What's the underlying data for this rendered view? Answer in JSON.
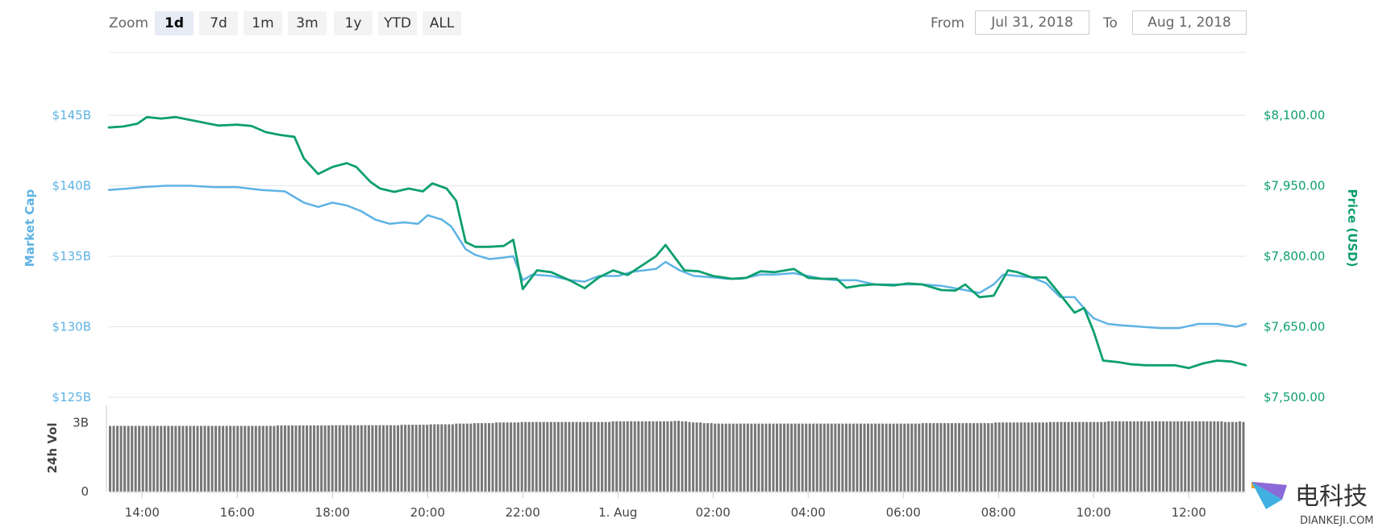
{
  "toolbar": {
    "zoom_label": "Zoom",
    "zoom_options": [
      "1d",
      "7d",
      "1m",
      "3m",
      "1y",
      "YTD",
      "ALL"
    ],
    "zoom_active": "1d",
    "from_label": "From",
    "from_value": "Jul 31, 2018",
    "to_label": "To",
    "to_value": "Aug 1, 2018"
  },
  "watermark": {
    "chinese": "电科技",
    "latin": "DIANKEJI.COM"
  },
  "chart_data": {
    "type": "line",
    "xlabel": "",
    "x_range": [
      13.3,
      37.2
    ],
    "x_ticks": [
      {
        "at": 14,
        "label": "14:00"
      },
      {
        "at": 16,
        "label": "16:00"
      },
      {
        "at": 18,
        "label": "18:00"
      },
      {
        "at": 20,
        "label": "20:00"
      },
      {
        "at": 22,
        "label": "22:00"
      },
      {
        "at": 24,
        "label": "1. Aug"
      },
      {
        "at": 26,
        "label": "02:00"
      },
      {
        "at": 28,
        "label": "04:00"
      },
      {
        "at": 30,
        "label": "06:00"
      },
      {
        "at": 32,
        "label": "08:00"
      },
      {
        "at": 34,
        "label": "10:00"
      },
      {
        "at": 36,
        "label": "12:00"
      }
    ],
    "y_left": {
      "label": "Market Cap",
      "range": [
        125,
        145
      ],
      "ticks": [
        {
          "v": 145,
          "label": "$145B"
        },
        {
          "v": 140,
          "label": "$140B"
        },
        {
          "v": 135,
          "label": "$135B"
        },
        {
          "v": 130,
          "label": "$130B"
        },
        {
          "v": 125,
          "label": "$125B"
        }
      ]
    },
    "y_right": {
      "label": "Price (USD)",
      "range": [
        7500,
        8100
      ],
      "ticks": [
        {
          "v": 8100,
          "label": "$8,100.00"
        },
        {
          "v": 7950,
          "label": "$7,950.00"
        },
        {
          "v": 7800,
          "label": "$7,800.00"
        },
        {
          "v": 7650,
          "label": "$7,650.00"
        },
        {
          "v": 7500,
          "label": "$7,500.00"
        }
      ]
    },
    "grid": true,
    "series": [
      {
        "name": "Market Cap",
        "axis": "left",
        "color": "#5fb3e4",
        "points": [
          [
            13.3,
            139.7
          ],
          [
            13.7,
            139.8
          ],
          [
            14.0,
            139.9
          ],
          [
            14.5,
            140.0
          ],
          [
            15.0,
            140.0
          ],
          [
            15.5,
            139.9
          ],
          [
            16.0,
            139.9
          ],
          [
            16.5,
            139.7
          ],
          [
            17.0,
            139.6
          ],
          [
            17.4,
            138.8
          ],
          [
            17.7,
            138.5
          ],
          [
            18.0,
            138.8
          ],
          [
            18.3,
            138.6
          ],
          [
            18.6,
            138.2
          ],
          [
            18.9,
            137.6
          ],
          [
            19.2,
            137.3
          ],
          [
            19.5,
            137.4
          ],
          [
            19.8,
            137.3
          ],
          [
            20.0,
            137.9
          ],
          [
            20.3,
            137.6
          ],
          [
            20.5,
            137.1
          ],
          [
            20.8,
            135.5
          ],
          [
            21.0,
            135.1
          ],
          [
            21.3,
            134.8
          ],
          [
            21.6,
            134.9
          ],
          [
            21.8,
            135.0
          ],
          [
            22.0,
            133.3
          ],
          [
            22.2,
            133.7
          ],
          [
            22.6,
            133.6
          ],
          [
            23.0,
            133.3
          ],
          [
            23.3,
            133.2
          ],
          [
            23.6,
            133.6
          ],
          [
            24.0,
            133.6
          ],
          [
            24.3,
            133.9
          ],
          [
            24.8,
            134.1
          ],
          [
            25.0,
            134.6
          ],
          [
            25.3,
            134.0
          ],
          [
            25.6,
            133.6
          ],
          [
            26.0,
            133.5
          ],
          [
            26.3,
            133.4
          ],
          [
            26.6,
            133.4
          ],
          [
            27.0,
            133.7
          ],
          [
            27.3,
            133.7
          ],
          [
            27.7,
            133.8
          ],
          [
            28.0,
            133.6
          ],
          [
            28.3,
            133.4
          ],
          [
            28.6,
            133.3
          ],
          [
            29.0,
            133.3
          ],
          [
            29.4,
            133.0
          ],
          [
            30.0,
            133.0
          ],
          [
            30.4,
            133.0
          ],
          [
            30.8,
            132.9
          ],
          [
            31.3,
            132.6
          ],
          [
            31.6,
            132.4
          ],
          [
            31.9,
            133.0
          ],
          [
            32.1,
            133.7
          ],
          [
            32.4,
            133.6
          ],
          [
            32.7,
            133.5
          ],
          [
            33.0,
            133.1
          ],
          [
            33.3,
            132.1
          ],
          [
            33.6,
            132.1
          ],
          [
            33.8,
            131.3
          ],
          [
            34.0,
            130.6
          ],
          [
            34.3,
            130.2
          ],
          [
            34.6,
            130.1
          ],
          [
            35.0,
            130.0
          ],
          [
            35.4,
            129.9
          ],
          [
            35.8,
            129.9
          ],
          [
            36.2,
            130.2
          ],
          [
            36.6,
            130.2
          ],
          [
            37.0,
            130.0
          ],
          [
            37.2,
            130.2
          ]
        ]
      },
      {
        "name": "Price (USD)",
        "axis": "right",
        "color": "#0e9f6e",
        "points": [
          [
            13.3,
            8074
          ],
          [
            13.6,
            8076
          ],
          [
            13.9,
            8082
          ],
          [
            14.1,
            8096
          ],
          [
            14.4,
            8093
          ],
          [
            14.7,
            8096
          ],
          [
            15.0,
            8090
          ],
          [
            15.3,
            8084
          ],
          [
            15.6,
            8078
          ],
          [
            16.0,
            8080
          ],
          [
            16.3,
            8077
          ],
          [
            16.6,
            8064
          ],
          [
            16.9,
            8058
          ],
          [
            17.2,
            8054
          ],
          [
            17.4,
            8008
          ],
          [
            17.7,
            7975
          ],
          [
            18.0,
            7990
          ],
          [
            18.3,
            7998
          ],
          [
            18.5,
            7990
          ],
          [
            18.8,
            7958
          ],
          [
            19.0,
            7944
          ],
          [
            19.3,
            7937
          ],
          [
            19.6,
            7944
          ],
          [
            19.9,
            7938
          ],
          [
            20.1,
            7955
          ],
          [
            20.4,
            7944
          ],
          [
            20.6,
            7918
          ],
          [
            20.8,
            7830
          ],
          [
            21.0,
            7820
          ],
          [
            21.3,
            7820
          ],
          [
            21.6,
            7822
          ],
          [
            21.8,
            7835
          ],
          [
            22.0,
            7730
          ],
          [
            22.3,
            7770
          ],
          [
            22.6,
            7766
          ],
          [
            23.0,
            7748
          ],
          [
            23.3,
            7732
          ],
          [
            23.6,
            7755
          ],
          [
            23.9,
            7770
          ],
          [
            24.2,
            7760
          ],
          [
            24.5,
            7780
          ],
          [
            24.8,
            7800
          ],
          [
            25.0,
            7824
          ],
          [
            25.4,
            7770
          ],
          [
            25.7,
            7768
          ],
          [
            26.0,
            7758
          ],
          [
            26.4,
            7752
          ],
          [
            26.7,
            7754
          ],
          [
            27.0,
            7768
          ],
          [
            27.3,
            7766
          ],
          [
            27.7,
            7773
          ],
          [
            28.0,
            7754
          ],
          [
            28.3,
            7752
          ],
          [
            28.6,
            7752
          ],
          [
            28.8,
            7733
          ],
          [
            29.1,
            7738
          ],
          [
            29.4,
            7740
          ],
          [
            29.8,
            7738
          ],
          [
            30.1,
            7742
          ],
          [
            30.4,
            7740
          ],
          [
            30.8,
            7728
          ],
          [
            31.1,
            7727
          ],
          [
            31.3,
            7740
          ],
          [
            31.6,
            7713
          ],
          [
            31.9,
            7716
          ],
          [
            32.2,
            7770
          ],
          [
            32.4,
            7766
          ],
          [
            32.7,
            7755
          ],
          [
            33.0,
            7755
          ],
          [
            33.3,
            7718
          ],
          [
            33.6,
            7680
          ],
          [
            33.8,
            7690
          ],
          [
            34.0,
            7640
          ],
          [
            34.2,
            7578
          ],
          [
            34.5,
            7575
          ],
          [
            34.8,
            7570
          ],
          [
            35.1,
            7568
          ],
          [
            35.4,
            7568
          ],
          [
            35.7,
            7568
          ],
          [
            36.0,
            7562
          ],
          [
            36.3,
            7572
          ],
          [
            36.6,
            7578
          ],
          [
            36.9,
            7576
          ],
          [
            37.2,
            7568
          ]
        ]
      }
    ],
    "volume": {
      "label": "24h Vol",
      "range": [
        0,
        3.5
      ],
      "ticks": [
        {
          "v": 3,
          "label": "3B"
        },
        {
          "v": 0,
          "label": "0"
        }
      ],
      "color": "#777777",
      "values": [
        2.85,
        2.85,
        2.85,
        2.85,
        2.85,
        2.85,
        2.85,
        2.85,
        2.85,
        2.85,
        2.85,
        2.85,
        2.85,
        2.85,
        2.85,
        2.85,
        2.85,
        2.85,
        2.85,
        2.85,
        2.85,
        2.85,
        2.85,
        2.85,
        2.85,
        2.85,
        2.85,
        2.85,
        2.85,
        2.85,
        2.85,
        2.85,
        2.85,
        2.85,
        2.85,
        2.85,
        2.85,
        2.85,
        2.85,
        2.85,
        2.85,
        2.85,
        2.85,
        2.85,
        2.85,
        2.85,
        2.87,
        2.87,
        2.87,
        2.87,
        2.87,
        2.87,
        2.87,
        2.87,
        2.87,
        2.87,
        2.87,
        2.87,
        2.87,
        2.87,
        2.87,
        2.88,
        2.88,
        2.88,
        2.88,
        2.88,
        2.88,
        2.88,
        2.88,
        2.88,
        2.88,
        2.88,
        2.88,
        2.88,
        2.88,
        2.88,
        2.88,
        2.88,
        2.88,
        2.88,
        2.9,
        2.9,
        2.9,
        2.9,
        2.9,
        2.9,
        2.9,
        2.9,
        2.92,
        2.92,
        2.92,
        2.92,
        2.92,
        2.92,
        2.92,
        2.95,
        2.95,
        2.95,
        2.95,
        2.95,
        2.97,
        2.97,
        2.97,
        2.97,
        2.97,
        2.97,
        3.0,
        3.0,
        3.0,
        3.0,
        3.0,
        3.0,
        3.0,
        3.02,
        3.02,
        3.02,
        3.02,
        3.02,
        3.02,
        3.02,
        3.02,
        3.02,
        3.02,
        3.02,
        3.02,
        3.02,
        3.02,
        3.02,
        3.02,
        3.02,
        3.02,
        3.02,
        3.02,
        3.02,
        3.02,
        3.02,
        3.02,
        3.02,
        3.05,
        3.05,
        3.05,
        3.05,
        3.05,
        3.05,
        3.05,
        3.05,
        3.05,
        3.05,
        3.05,
        3.05,
        3.05,
        3.05,
        3.05,
        3.05,
        3.05,
        3.07,
        3.07,
        3.05,
        3.05,
        3.02,
        3.0,
        3.0,
        3.0,
        2.97,
        2.97,
        2.97,
        2.95,
        2.95,
        2.95,
        2.95,
        2.95,
        2.95,
        2.95,
        2.95,
        2.95,
        2.95,
        2.95,
        2.95,
        2.95,
        2.95,
        2.95,
        2.95,
        2.95,
        2.95,
        2.95,
        2.95,
        2.95,
        2.95,
        2.95,
        2.95,
        2.95,
        2.95,
        2.95,
        2.95,
        2.95,
        2.95,
        2.95,
        2.95,
        2.95,
        2.95,
        2.95,
        2.95,
        2.95,
        2.95,
        2.95,
        2.95,
        2.95,
        2.95,
        2.95,
        2.95,
        2.95,
        2.95,
        2.95,
        2.95,
        2.95,
        2.95,
        2.95,
        2.95,
        2.95,
        2.95,
        2.95,
        2.95,
        2.95,
        2.97,
        2.97,
        2.97,
        2.97,
        2.97,
        2.97,
        2.97,
        2.97,
        2.97,
        2.97,
        2.97,
        2.97,
        2.97,
        2.97,
        2.97,
        2.97,
        2.97,
        2.97,
        2.97,
        2.97,
        3.0,
        3.0,
        3.0,
        3.0,
        3.0,
        3.0,
        3.0,
        3.0,
        3.0,
        3.0,
        3.0,
        3.0,
        3.0,
        3.0,
        3.0,
        3.02,
        3.02,
        3.02,
        3.02,
        3.02,
        3.02,
        3.02,
        3.02,
        3.02,
        3.02,
        3.02,
        3.02,
        3.02,
        3.02,
        3.02,
        3.02,
        3.05,
        3.05,
        3.05,
        3.05,
        3.05,
        3.05,
        3.05,
        3.05,
        3.05,
        3.05,
        3.05,
        3.05,
        3.05,
        3.05,
        3.05,
        3.05,
        3.05,
        3.05,
        3.05,
        3.05,
        3.05,
        3.05,
        3.05,
        3.05,
        3.05,
        3.05,
        3.05,
        3.05,
        3.05,
        3.05,
        3.05,
        3.05,
        3.02,
        3.02,
        3.02,
        3.02,
        3.05,
        3.02
      ]
    }
  }
}
